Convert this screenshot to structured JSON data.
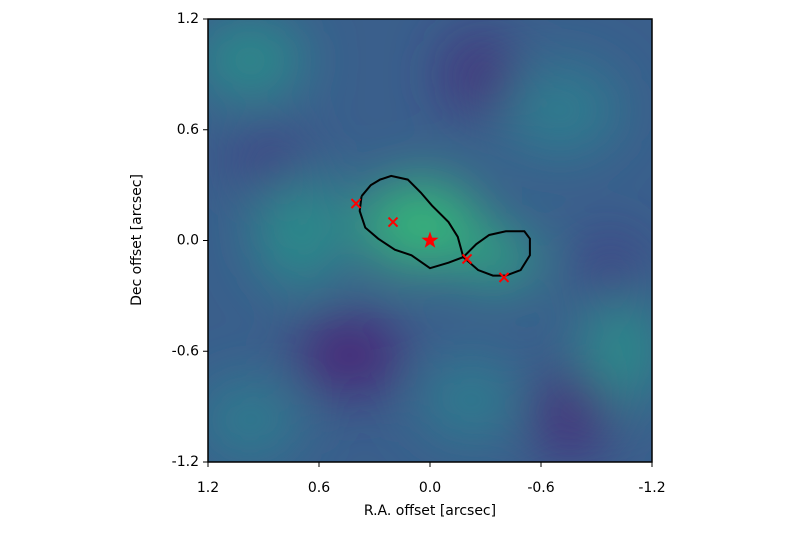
{
  "chart_data": {
    "type": "scatter",
    "xlabel": "R.A. offset [arcsec]",
    "ylabel": "Dec offset [arcsec]",
    "xlim": [
      1.2,
      -1.2
    ],
    "ylim": [
      -1.2,
      1.2
    ],
    "xticks": [
      1.2,
      0.6,
      {
        "value": 0,
        "label": "0.0"
      },
      -0.6,
      -1.2
    ],
    "yticks": [
      -1.2,
      -0.6,
      {
        "value": 0,
        "label": "0.0"
      },
      0.6,
      1.2
    ],
    "series": [
      {
        "marker": "line",
        "color": "#000000",
        "x": [
          0.37,
          0.32,
          0.27,
          0.21,
          0.12,
          0.05,
          -0.01,
          -0.1,
          -0.15,
          -0.18,
          -0.1,
          0.0,
          0.1,
          0.19,
          0.28,
          0.35,
          0.38,
          0.37,
          null,
          -0.18,
          -0.25,
          -0.32,
          -0.41,
          -0.51,
          -0.54,
          -0.54,
          -0.49,
          -0.41,
          -0.34,
          -0.26,
          -0.18
        ],
        "values": [
          0.24,
          0.3,
          0.33,
          0.35,
          0.33,
          0.26,
          0.19,
          0.1,
          0.02,
          -0.09,
          -0.12,
          -0.15,
          -0.08,
          -0.05,
          0.01,
          0.07,
          0.16,
          0.24,
          null,
          -0.09,
          -0.02,
          0.03,
          0.05,
          0.05,
          0.01,
          -0.08,
          -0.16,
          -0.19,
          -0.19,
          -0.16,
          -0.09
        ]
      },
      {
        "marker": "x",
        "color": "#ff0000",
        "x": [
          0.4,
          0.2,
          -0.2,
          -0.4
        ],
        "values": [
          0.2,
          0.1,
          -0.1,
          -0.2
        ]
      },
      {
        "marker": "star",
        "color": "#ff0000",
        "x": [
          0
        ],
        "values": [
          0
        ]
      }
    ]
  }
}
